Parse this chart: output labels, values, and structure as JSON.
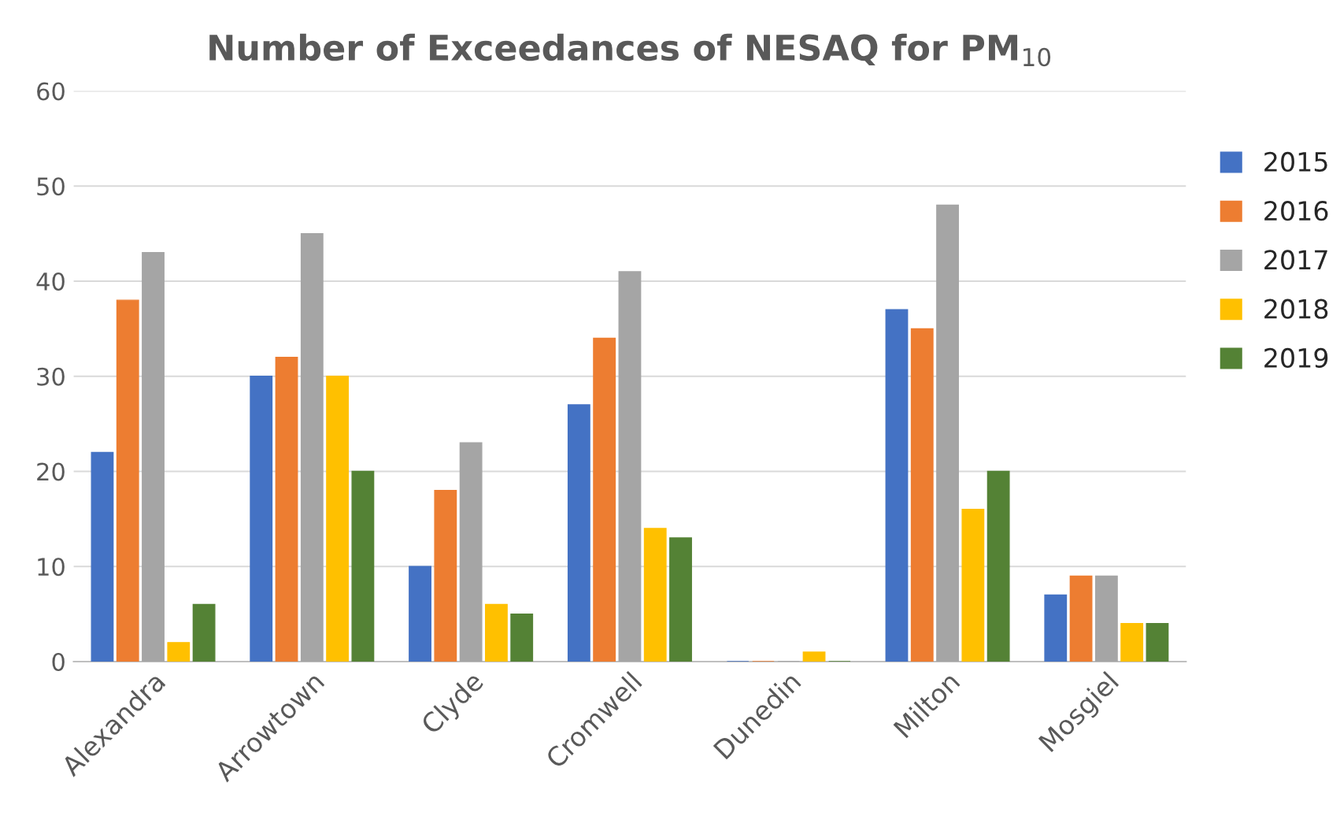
{
  "chart_data": {
    "type": "bar",
    "title": "Number of Exceedances of NESAQ for PM$_{10}$",
    "categories": [
      "Alexandra",
      "Arrowtown",
      "Clyde",
      "Cromwell",
      "Dunedin",
      "Milton",
      "Mosgiel"
    ],
    "series": [
      {
        "name": "2015",
        "color": "#4472c4",
        "values": [
          22,
          30,
          10,
          27,
          0,
          37,
          7
        ]
      },
      {
        "name": "2016",
        "color": "#ed7d31",
        "values": [
          38,
          32,
          18,
          34,
          0,
          35,
          9
        ]
      },
      {
        "name": "2017",
        "color": "#a5a5a5",
        "values": [
          43,
          45,
          23,
          41,
          0,
          48,
          9
        ]
      },
      {
        "name": "2018",
        "color": "#ffc000",
        "values": [
          2,
          30,
          6,
          14,
          1,
          16,
          4
        ]
      },
      {
        "name": "2019",
        "color": "#548235",
        "values": [
          6,
          20,
          5,
          13,
          0,
          20,
          4
        ]
      }
    ],
    "ylim": [
      0,
      60
    ],
    "yticks": [
      0,
      10,
      20,
      30,
      40,
      50,
      60
    ],
    "grid": "y",
    "legend": "right"
  }
}
